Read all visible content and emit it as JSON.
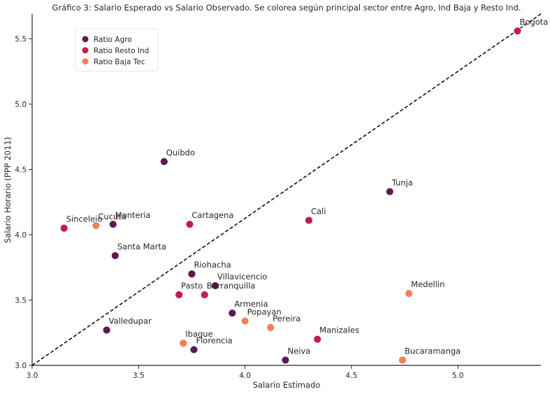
{
  "chart_data": {
    "type": "scatter",
    "title": "Gráfico 3: Salario Esperado vs Salario Observado. Se colorea según principal sector entre Agro, Ind Baja y Resto Ind.",
    "xlabel": "Salario Estimado",
    "ylabel": "Salario Horario (PPP 2011)",
    "xlim": [
      3.0,
      5.39
    ],
    "ylim": [
      3.0,
      5.69
    ],
    "xticks": [
      "3.0",
      "3.5",
      "4.0",
      "4.5",
      "5.0"
    ],
    "yticks": [
      "3.0",
      "3.5",
      "4.0",
      "4.5",
      "5.0",
      "5.5"
    ],
    "grid": false,
    "legend_position": "top-left",
    "reference_line": {
      "style": "dashed",
      "color": "#000000",
      "from": [
        3.0,
        3.0
      ],
      "to": [
        5.39,
        5.69
      ]
    },
    "series": [
      {
        "name": "Ratio Agro",
        "color": "#5c1a4f",
        "points": [
          {
            "label": "Quibdo",
            "x": 3.62,
            "y": 4.56
          },
          {
            "label": "Monteria",
            "x": 3.38,
            "y": 4.08
          },
          {
            "label": "Santa Marta",
            "x": 3.39,
            "y": 3.84
          },
          {
            "label": "Riohacha",
            "x": 3.75,
            "y": 3.7
          },
          {
            "label": "Villavicencio",
            "x": 3.86,
            "y": 3.61
          },
          {
            "label": "Armenia",
            "x": 3.94,
            "y": 3.4
          },
          {
            "label": "Valledupar",
            "x": 3.35,
            "y": 3.27
          },
          {
            "label": "Florencia",
            "x": 3.76,
            "y": 3.12
          },
          {
            "label": "Neiva",
            "x": 4.19,
            "y": 3.04
          },
          {
            "label": "Tunja",
            "x": 4.68,
            "y": 4.33
          }
        ]
      },
      {
        "name": "Ratio Resto Ind",
        "color": "#c21d4c",
        "points": [
          {
            "label": "Bogota",
            "x": 5.28,
            "y": 5.56
          },
          {
            "label": "Cali",
            "x": 4.3,
            "y": 4.11
          },
          {
            "label": "Cartagena",
            "x": 3.74,
            "y": 4.08
          },
          {
            "label": "Sincelejo",
            "x": 3.15,
            "y": 4.05
          },
          {
            "label": "Pasto",
            "x": 3.69,
            "y": 3.54
          },
          {
            "label": "Barranquilla",
            "x": 3.81,
            "y": 3.54
          },
          {
            "label": "Manizales",
            "x": 4.34,
            "y": 3.2
          }
        ]
      },
      {
        "name": "Ratio Baja Tec",
        "color": "#f07f5a",
        "points": [
          {
            "label": "Cucuta",
            "x": 3.3,
            "y": 4.07
          },
          {
            "label": "Medellin",
            "x": 4.77,
            "y": 3.55
          },
          {
            "label": "Popayan",
            "x": 4.0,
            "y": 3.34
          },
          {
            "label": "Pereira",
            "x": 4.12,
            "y": 3.29
          },
          {
            "label": "Ibague",
            "x": 3.71,
            "y": 3.17
          },
          {
            "label": "Bucaramanga",
            "x": 4.74,
            "y": 3.04
          }
        ]
      }
    ]
  }
}
